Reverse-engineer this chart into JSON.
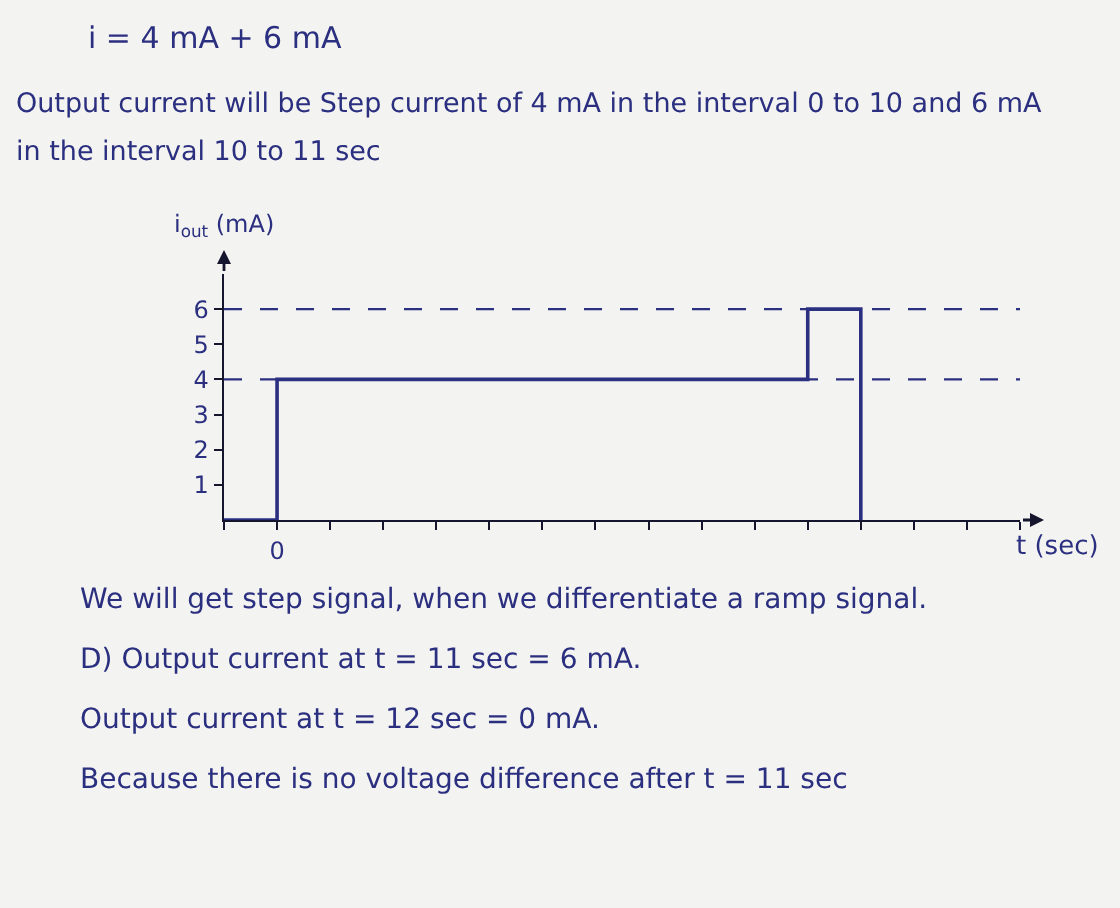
{
  "chart_data": {
    "type": "step",
    "title": "i = 4 mA + 6 mA",
    "subtitle": "Output current will be Step current of 4 mA in the interval 0 to 10 and 6 mA in the interval 10 to 11 sec",
    "xlabel": "t (sec)",
    "ylabel": "i$_{out}$ (mA)",
    "categories": [
      null,
      "0",
      null,
      null,
      null,
      null,
      null,
      null,
      null,
      null,
      null,
      null,
      null,
      null,
      null,
      null
    ],
    "series": [
      {
        "color": "#2b2f7f",
        "values": [
          0,
          4,
          4,
          4,
          4,
          4,
          4,
          4,
          4,
          4,
          4,
          6,
          0,
          null,
          null,
          null
        ]
      }
    ],
    "ylim": [
      0,
      7
    ],
    "yticks": [
      1,
      2,
      3,
      4,
      5,
      6
    ],
    "ref_lines": [
      {
        "axis": "y",
        "value": 6,
        "color": "#2b2f7f",
        "line_style": "dashed"
      },
      {
        "axis": "y",
        "value": 4,
        "color": "#2b2f7f",
        "line_style": "dashed"
      }
    ],
    "annotations": [
      "We will get step signal, when we differentiate a ramp signal.",
      "D) Output current at t = 11 sec = 6 mA.",
      "Output current at t = 12 sec = 0 mA.",
      "Because there is no voltage difference after t = 11 sec"
    ]
  }
}
